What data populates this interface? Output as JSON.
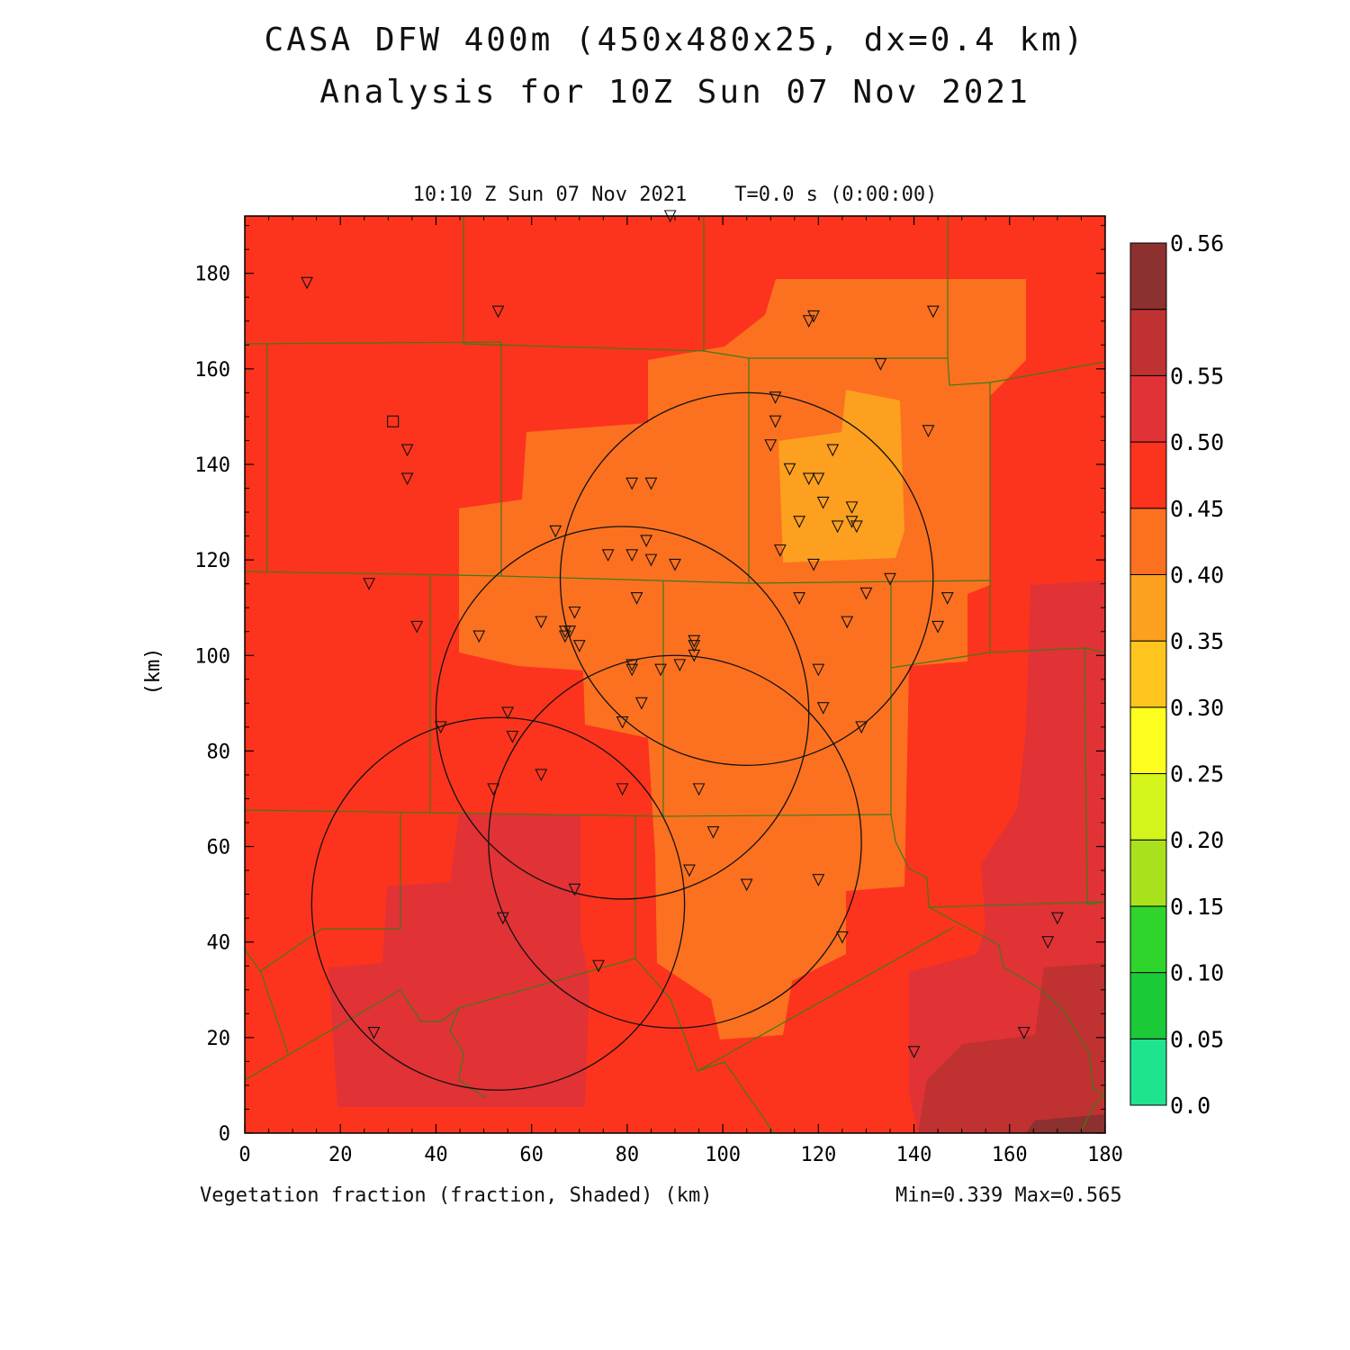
{
  "title_line1": "CASA DFW 400m (450x480x25, dx=0.4 km)",
  "title_line2": "Analysis for 10Z Sun 07 Nov 2021",
  "subtitle": "10:10 Z Sun 07 Nov 2021    T=0.0 s (0:00:00)",
  "x_ticks": [
    "0",
    "20",
    "40",
    "60",
    "80",
    "100",
    "120",
    "140",
    "160",
    "180"
  ],
  "y_ticks": [
    "0",
    "20",
    "40",
    "60",
    "80",
    "100",
    "120",
    "140",
    "160",
    "180"
  ],
  "y_label": "(km)",
  "x_label": "Vegetation fraction (fraction, Shaded)  (km)",
  "stats": "Min=0.339 Max=0.565",
  "colorbar": {
    "labels": [
      "0.0",
      "0.05",
      "0.10",
      "0.15",
      "0.20",
      "0.25",
      "0.30",
      "0.35",
      "0.40",
      "0.45",
      "0.50",
      "0.55",
      "0.56"
    ],
    "colors": [
      "#1fe48e",
      "#1cc936",
      "#2fd52c",
      "#a9e21c",
      "#d3f51b",
      "#ffff1f",
      "#ffc51f",
      "#fd9f1f",
      "#fb7120",
      "#fd341d",
      "#e13236",
      "#c03131",
      "#8c3030"
    ]
  },
  "colors": {
    "level_035_040": "#fb7120",
    "level_030_035": "#fd9f1f",
    "level_040_045": "#fd341d",
    "level_045_050": "#e13236",
    "level_050_055": "#c03131",
    "level_055_056": "#8c3030",
    "county_line": "#3f7a18"
  },
  "radar_rings_km": [
    {
      "center": [
        105,
        116
      ],
      "radius": 39
    },
    {
      "center": [
        79,
        88
      ],
      "radius": 39
    },
    {
      "center": [
        90,
        61
      ],
      "radius": 39
    },
    {
      "center": [
        53,
        48
      ],
      "radius": 39
    }
  ],
  "stations_km": [
    [
      13,
      178
    ],
    [
      53,
      172
    ],
    [
      118,
      170
    ],
    [
      119,
      171
    ],
    [
      144,
      172
    ],
    [
      133,
      161
    ],
    [
      111,
      154
    ],
    [
      111,
      149
    ],
    [
      110,
      144
    ],
    [
      114,
      139
    ],
    [
      118,
      137
    ],
    [
      120,
      137
    ],
    [
      123,
      143
    ],
    [
      143,
      147
    ],
    [
      34,
      143
    ],
    [
      34,
      137
    ],
    [
      81,
      136
    ],
    [
      85,
      136
    ],
    [
      121,
      132
    ],
    [
      127,
      131
    ],
    [
      127,
      128
    ],
    [
      124,
      127
    ],
    [
      128,
      127
    ],
    [
      116,
      128
    ],
    [
      65,
      126
    ],
    [
      84,
      124
    ],
    [
      76,
      121
    ],
    [
      81,
      121
    ],
    [
      85,
      120
    ],
    [
      90,
      119
    ],
    [
      112,
      122
    ],
    [
      119,
      119
    ],
    [
      26,
      115
    ],
    [
      135,
      116
    ],
    [
      82,
      112
    ],
    [
      116,
      112
    ],
    [
      130,
      113
    ],
    [
      147,
      112
    ],
    [
      36,
      106
    ],
    [
      62,
      107
    ],
    [
      67,
      105
    ],
    [
      69,
      109
    ],
    [
      68,
      105
    ],
    [
      67,
      104
    ],
    [
      70,
      102
    ],
    [
      126,
      107
    ],
    [
      145,
      106
    ],
    [
      49,
      104
    ],
    [
      94,
      103
    ],
    [
      94,
      102
    ],
    [
      94,
      100
    ],
    [
      91,
      98
    ],
    [
      81,
      98
    ],
    [
      81,
      97
    ],
    [
      87,
      97
    ],
    [
      120,
      97
    ],
    [
      83,
      90
    ],
    [
      121,
      89
    ],
    [
      79,
      86
    ],
    [
      55,
      88
    ],
    [
      56,
      83
    ],
    [
      41,
      85
    ],
    [
      129,
      85
    ],
    [
      62,
      75
    ],
    [
      52,
      72
    ],
    [
      79,
      72
    ],
    [
      95,
      72
    ],
    [
      98,
      63
    ],
    [
      93,
      55
    ],
    [
      120,
      53
    ],
    [
      105,
      52
    ],
    [
      69,
      51
    ],
    [
      54,
      45
    ],
    [
      170,
      45
    ],
    [
      125,
      41
    ],
    [
      168,
      40
    ],
    [
      74,
      35
    ],
    [
      27,
      21
    ],
    [
      163,
      21
    ],
    [
      140,
      17
    ]
  ],
  "square_marker_km": [
    31,
    149
  ],
  "top_edge_station_km": [
    89,
    192
  ]
}
